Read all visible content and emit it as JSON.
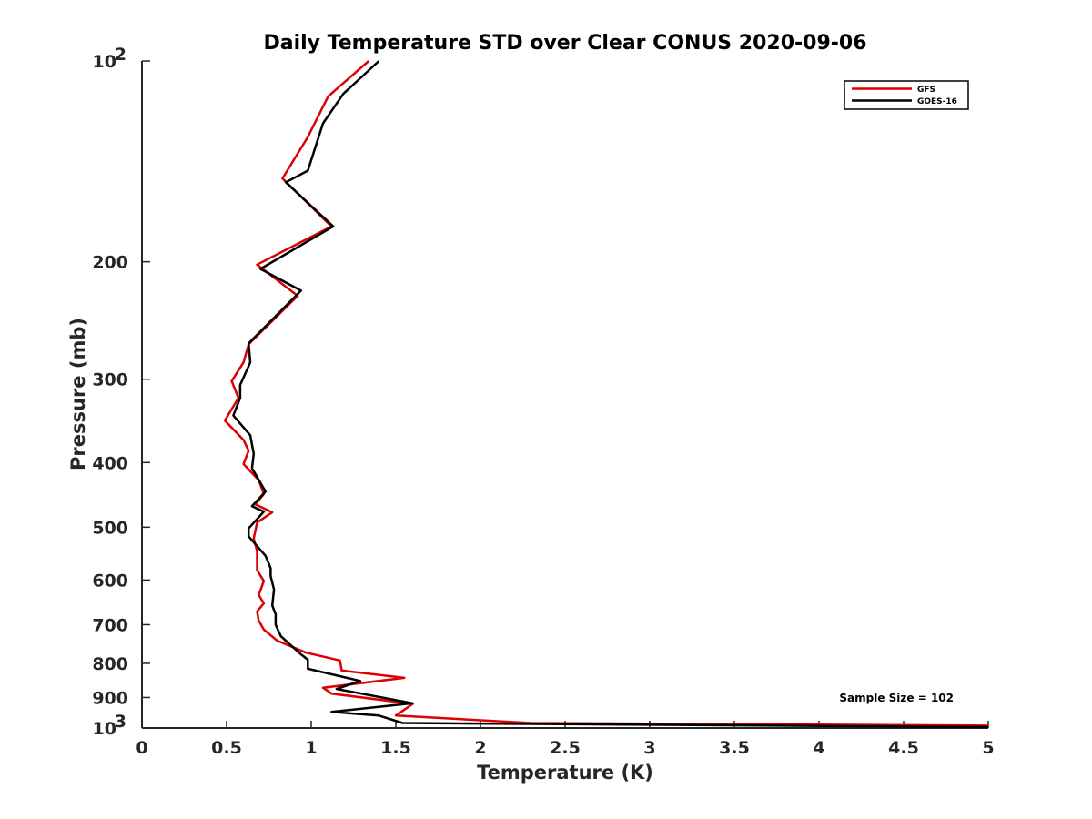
{
  "chart_data": {
    "type": "line",
    "title": "Daily Temperature STD over Clear CONUS 2020-09-06",
    "xlabel": "Temperature (K)",
    "ylabel": "Pressure (mb)",
    "xlim": [
      0,
      5
    ],
    "ylim": [
      100,
      1000
    ],
    "y_scale": "log",
    "y_reversed": true,
    "xticks": [
      "0",
      "0.5",
      "1",
      "1.5",
      "2",
      "2.5",
      "3",
      "3.5",
      "4",
      "4.5",
      "5"
    ],
    "yticks": [
      {
        "value": 100,
        "label": "10",
        "sup": "2"
      },
      {
        "value": 200,
        "label": "200"
      },
      {
        "value": 300,
        "label": "300"
      },
      {
        "value": 400,
        "label": "400"
      },
      {
        "value": 500,
        "label": "500"
      },
      {
        "value": 600,
        "label": "600"
      },
      {
        "value": 700,
        "label": "700"
      },
      {
        "value": 800,
        "label": "800"
      },
      {
        "value": 900,
        "label": "900"
      },
      {
        "value": 1000,
        "label": "10",
        "sup": "3"
      }
    ],
    "grid": false,
    "legend_position": "top-right",
    "annotation": "Sample Size = 102",
    "series": [
      {
        "name": "GFS",
        "color": "#dd0000",
        "points": [
          [
            1.34,
            100
          ],
          [
            1.1,
            113
          ],
          [
            0.98,
            130
          ],
          [
            0.83,
            150
          ],
          [
            1.12,
            177
          ],
          [
            0.68,
            202
          ],
          [
            0.92,
            225
          ],
          [
            0.63,
            266
          ],
          [
            0.6,
            283
          ],
          [
            0.53,
            302
          ],
          [
            0.57,
            320
          ],
          [
            0.49,
            346
          ],
          [
            0.6,
            370
          ],
          [
            0.63,
            384
          ],
          [
            0.6,
            402
          ],
          [
            0.69,
            425
          ],
          [
            0.72,
            446
          ],
          [
            0.67,
            462
          ],
          [
            0.77,
            475
          ],
          [
            0.68,
            492
          ],
          [
            0.66,
            520
          ],
          [
            0.68,
            543
          ],
          [
            0.68,
            580
          ],
          [
            0.72,
            602
          ],
          [
            0.69,
            632
          ],
          [
            0.72,
            650
          ],
          [
            0.68,
            669
          ],
          [
            0.69,
            690
          ],
          [
            0.72,
            712
          ],
          [
            0.8,
            740
          ],
          [
            0.97,
            771
          ],
          [
            1.17,
            792
          ],
          [
            1.18,
            820
          ],
          [
            1.55,
            841
          ],
          [
            1.07,
            870
          ],
          [
            1.12,
            888
          ],
          [
            1.6,
            920
          ],
          [
            1.5,
            958
          ],
          [
            2.3,
            983
          ],
          [
            5.0,
            992
          ]
        ]
      },
      {
        "name": "GOES-16",
        "color": "#000000",
        "points": [
          [
            1.4,
            100
          ],
          [
            1.19,
            112
          ],
          [
            1.07,
            124
          ],
          [
            0.98,
            146
          ],
          [
            0.85,
            152
          ],
          [
            1.13,
            177
          ],
          [
            0.7,
            205
          ],
          [
            0.94,
            221
          ],
          [
            0.63,
            265
          ],
          [
            0.64,
            283
          ],
          [
            0.58,
            306
          ],
          [
            0.58,
            320
          ],
          [
            0.54,
            340
          ],
          [
            0.64,
            364
          ],
          [
            0.66,
            388
          ],
          [
            0.65,
            408
          ],
          [
            0.73,
            442
          ],
          [
            0.65,
            465
          ],
          [
            0.72,
            474
          ],
          [
            0.63,
            502
          ],
          [
            0.63,
            516
          ],
          [
            0.73,
            552
          ],
          [
            0.76,
            576
          ],
          [
            0.76,
            592
          ],
          [
            0.78,
            620
          ],
          [
            0.77,
            655
          ],
          [
            0.79,
            675
          ],
          [
            0.79,
            700
          ],
          [
            0.82,
            728
          ],
          [
            0.93,
            772
          ],
          [
            0.98,
            790
          ],
          [
            0.98,
            815
          ],
          [
            1.29,
            850
          ],
          [
            1.15,
            874
          ],
          [
            1.6,
            918
          ],
          [
            1.12,
            946
          ],
          [
            1.4,
            958
          ],
          [
            1.54,
            983
          ],
          [
            5.0,
            997
          ]
        ]
      }
    ]
  }
}
